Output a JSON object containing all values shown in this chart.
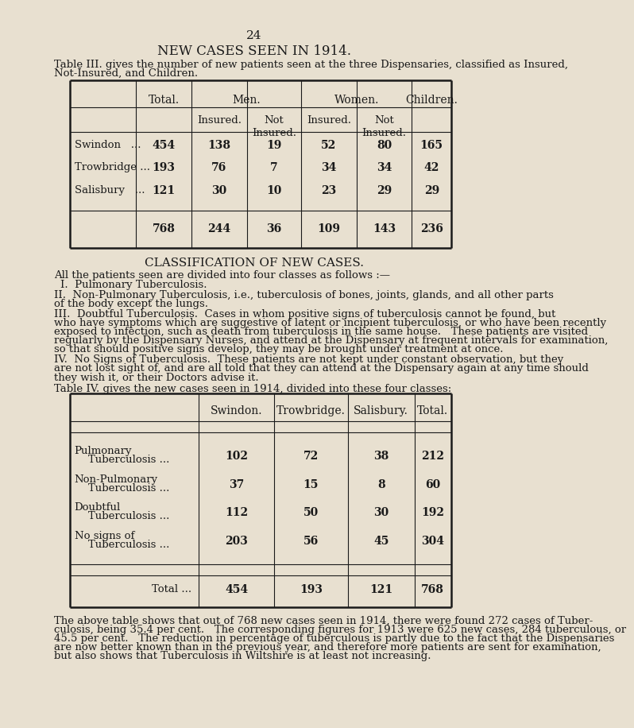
{
  "page_number": "24",
  "bg_color": "#e8e0d0",
  "text_color": "#1a1a1a",
  "title": "NEW CASES SEEN IN 1914.",
  "intro_line1": "Table III. gives the number of new patients seen at the three Dispensaries, classified as Insured,",
  "intro_line2": "Not-Insured, and Children.",
  "table3_header1": [
    "Total.",
    "Men.",
    "Women.",
    "Children."
  ],
  "table3_header2": [
    "Insured.",
    "Not\nInsured.",
    "Insured.",
    "Not\nInsured."
  ],
  "table3_rows": [
    [
      "Swindon   ...",
      "454",
      "138",
      "19",
      "52",
      "80",
      "165"
    ],
    [
      "Trowbridge ...",
      "193",
      "76",
      "7",
      "34",
      "34",
      "42"
    ],
    [
      "Salisbury   ...",
      "121",
      "30",
      "10",
      "23",
      "29",
      "29"
    ]
  ],
  "table3_totals": [
    "768",
    "244",
    "36",
    "109",
    "143",
    "236"
  ],
  "section_title": "CLASSIFICATION OF NEW CASES.",
  "class_line1": "All the patients seen are divided into four classes as follows :—",
  "class_line2": "I.  Pulmonary Tuberculosis.",
  "class_line3a": "II.  Non-Pulmonary Tuberculosis, i.e., tuberculosis of bones, joints, glands, and all other parts",
  "class_line3b": "of the body except the lungs.",
  "class_line4a": "III.  Doubtful Tuberculosis.  Cases in whom positive signs of tuberculosis cannot be found, but",
  "class_line4b": "who have symptoms which are suggestive of latent or incipient tuberculosis, or who have been recently",
  "class_line4c": "exposed to infection, such as death from tuberculosis in the same house.   These patients are visited",
  "class_line4d": "regularly by the Dispensary Nurses, and attend at the Dispensary at frequent intervals for examination,",
  "class_line4e": "so that should positive signs develop, they may be brought under treatment at once.",
  "class_line5a": "IV.  No Signs of Tuberculosis.  These patients are not kept under constant observation, but they",
  "class_line5b": "are not lost sight of, and are all told that they can attend at the Dispensary again at any time should",
  "class_line5c": "they wish it, or their Doctors advise it.",
  "class_line6": "Table IV. gives the new cases seen in 1914, divided into these four classes:",
  "table4_headers": [
    "Swindon.",
    "Trowbridge.",
    "Salisbury.",
    "Total."
  ],
  "table4_row_labels": [
    [
      "Pulmonary",
      "    Tuberculosis ..."
    ],
    [
      "Non-Pulmonary",
      "    Tuberculosis ..."
    ],
    [
      "Doubtful",
      "    Tuberculosis ..."
    ],
    [
      "No signs of",
      "    Tuberculosis ..."
    ]
  ],
  "table4_vals": [
    [
      "102",
      "72",
      "38",
      "212"
    ],
    [
      "37",
      "15",
      "8",
      "60"
    ],
    [
      "112",
      "50",
      "30",
      "192"
    ],
    [
      "203",
      "56",
      "45",
      "304"
    ]
  ],
  "table4_totals": [
    "454",
    "193",
    "121",
    "768"
  ],
  "footer_line1": "The above table shows that out of 768 new cases seen in 1914, there were found 272 cases of Tuber-",
  "footer_line2": "culosis, being 35.4 per cent.   The corresponding figures for 1913 were 625 new cases, 284 tuberculous, or",
  "footer_line3": "45.5 per cent.   The reduction in percentage of tuberculous is partly due to the fact that the Dispensaries",
  "footer_line4": "are now better known than in the previous year, and therefore more patients are sent for examination,",
  "footer_line5": "but also shows that Tuberculosis in Wiltshire is at least not increasing."
}
